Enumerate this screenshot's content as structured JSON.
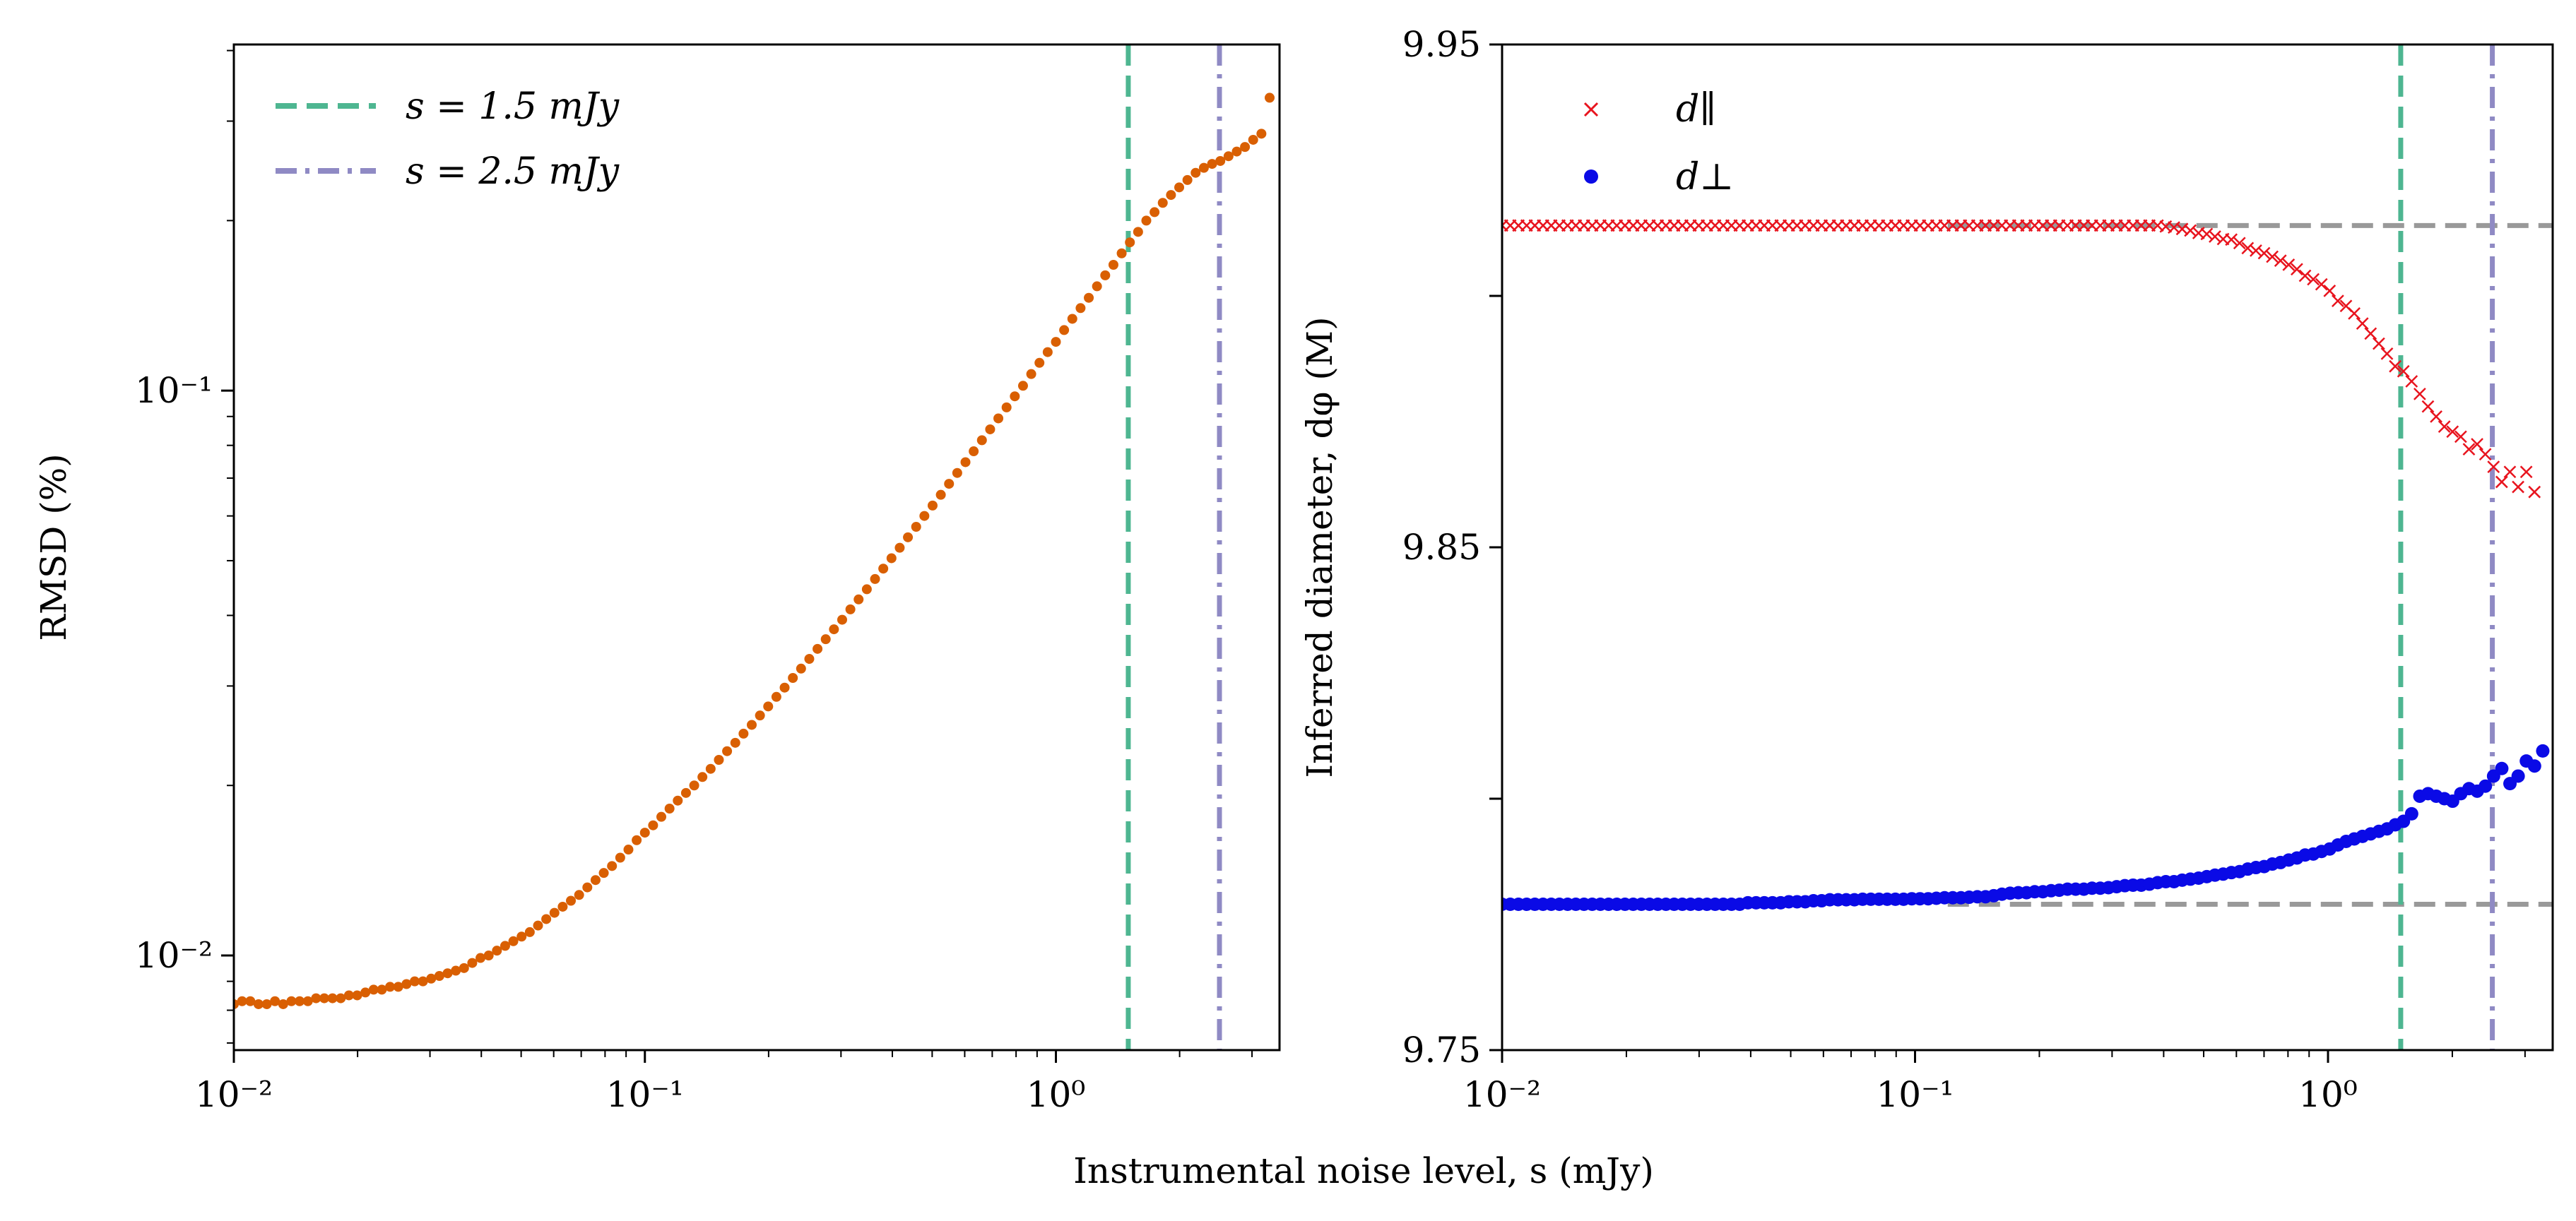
{
  "shared_xlabel": "Instrumental noise level, s (mJy)",
  "colors": {
    "rmsd": "#d95f02",
    "green": "#4eb691",
    "purple": "#8f8ac4",
    "red": "#e8141e",
    "blue": "#0a0ae6",
    "gray": "#999999"
  },
  "chart_data": [
    {
      "type": "scatter",
      "title": "",
      "xlabel": "Instrumental noise level, s (mJy)",
      "ylabel": "RMSD (%)",
      "xscale": "log",
      "yscale": "log",
      "xlim": [
        0.01,
        3.5
      ],
      "ylim": [
        0.0068,
        0.41
      ],
      "xticks": [
        {
          "value": 0.01,
          "label": "10⁻²"
        },
        {
          "value": 0.1,
          "label": "10⁻¹"
        },
        {
          "value": 1,
          "label": "10⁰"
        }
      ],
      "yticks": [
        {
          "value": 0.01,
          "label": "10⁻²"
        },
        {
          "value": 0.1,
          "label": "10⁻¹"
        }
      ],
      "legend": {
        "position": "top-left",
        "entries": [
          {
            "label": "s = 1.5 mJy",
            "style": "dashed",
            "color": "#4eb691"
          },
          {
            "label": "s = 2.5 mJy",
            "style": "dash-dot",
            "color": "#8f8ac4"
          }
        ]
      },
      "vlines": [
        {
          "x": 1.5,
          "style": "dashed",
          "color": "#4eb691"
        },
        {
          "x": 2.5,
          "style": "dash-dot",
          "color": "#8f8ac4"
        }
      ],
      "series": [
        {
          "name": "RMSD",
          "marker": "dot",
          "color": "#d95f02",
          "log10_x_range": [
            -2.0,
            0.52
          ],
          "values": [
            0.0082,
            0.0083,
            0.0083,
            0.0082,
            0.0082,
            0.0083,
            0.0082,
            0.0083,
            0.0083,
            0.0083,
            0.0084,
            0.0084,
            0.0084,
            0.0084,
            0.0085,
            0.0085,
            0.0086,
            0.0087,
            0.0087,
            0.0088,
            0.0088,
            0.0089,
            0.009,
            0.009,
            0.0091,
            0.0092,
            0.0093,
            0.0094,
            0.0095,
            0.0097,
            0.0099,
            0.01,
            0.0102,
            0.0104,
            0.0106,
            0.0108,
            0.011,
            0.0113,
            0.0116,
            0.0119,
            0.0122,
            0.0125,
            0.0128,
            0.0132,
            0.0136,
            0.014,
            0.0144,
            0.0149,
            0.0154,
            0.016,
            0.0165,
            0.017,
            0.0176,
            0.0182,
            0.0188,
            0.0194,
            0.02,
            0.0207,
            0.0214,
            0.0222,
            0.023,
            0.0238,
            0.0247,
            0.0256,
            0.0266,
            0.0276,
            0.0287,
            0.0298,
            0.031,
            0.0322,
            0.0335,
            0.0349,
            0.0363,
            0.0378,
            0.0393,
            0.041,
            0.0427,
            0.0445,
            0.0464,
            0.0484,
            0.0505,
            0.0527,
            0.055,
            0.0574,
            0.06,
            0.0626,
            0.0654,
            0.0684,
            0.0715,
            0.0747,
            0.0781,
            0.0817,
            0.0854,
            0.0893,
            0.0934,
            0.0977,
            0.102,
            0.107,
            0.112,
            0.117,
            0.122,
            0.128,
            0.134,
            0.14,
            0.146,
            0.153,
            0.16,
            0.167,
            0.175,
            0.183,
            0.191,
            0.2,
            0.207,
            0.215,
            0.222,
            0.229,
            0.236,
            0.243,
            0.248,
            0.252,
            0.255,
            0.26,
            0.265,
            0.27,
            0.278,
            0.285,
            0.33
          ]
        }
      ]
    },
    {
      "type": "scatter",
      "title": "",
      "xlabel": "Instrumental noise level, s (mJy)",
      "ylabel": "Inferred diameter, dφ (M)",
      "xscale": "log",
      "yscale": "linear",
      "xlim": [
        0.01,
        3.5
      ],
      "ylim": [
        9.75,
        9.95
      ],
      "xticks": [
        {
          "value": 0.01,
          "label": "10⁻²"
        },
        {
          "value": 0.1,
          "label": "10⁻¹"
        },
        {
          "value": 1,
          "label": "10⁰"
        }
      ],
      "yticks": [
        {
          "value": 9.75,
          "label": "9.75"
        },
        {
          "value": 9.85,
          "label": "9.85"
        },
        {
          "value": 9.95,
          "label": "9.95"
        }
      ],
      "yminorticks": [
        9.8,
        9.9
      ],
      "legend": {
        "position": "top-left",
        "entries": [
          {
            "label": "d∥",
            "marker": "x",
            "color": "#e8141e"
          },
          {
            "label": "d⊥",
            "marker": "dot",
            "color": "#0a0ae6"
          }
        ]
      },
      "vlines": [
        {
          "x": 1.5,
          "style": "dashed",
          "color": "#4eb691"
        },
        {
          "x": 2.5,
          "style": "dash-dot",
          "color": "#8f8ac4"
        }
      ],
      "hlines": [
        {
          "y": 9.914,
          "x_start": 0.12,
          "style": "dashed",
          "color": "#999999"
        },
        {
          "y": 9.779,
          "x_start": 0.12,
          "style": "dashed",
          "color": "#999999"
        }
      ],
      "series": [
        {
          "name": "d∥",
          "marker": "x",
          "color": "#e8141e",
          "log10_x_range": [
            -2.0,
            0.5
          ],
          "values": [
            9.914,
            9.914,
            9.914,
            9.914,
            9.914,
            9.914,
            9.914,
            9.914,
            9.914,
            9.914,
            9.914,
            9.914,
            9.914,
            9.914,
            9.914,
            9.914,
            9.914,
            9.914,
            9.914,
            9.914,
            9.914,
            9.914,
            9.914,
            9.914,
            9.914,
            9.914,
            9.914,
            9.914,
            9.914,
            9.914,
            9.914,
            9.914,
            9.914,
            9.914,
            9.914,
            9.914,
            9.914,
            9.914,
            9.914,
            9.914,
            9.914,
            9.914,
            9.914,
            9.914,
            9.914,
            9.914,
            9.914,
            9.914,
            9.914,
            9.914,
            9.914,
            9.914,
            9.914,
            9.914,
            9.914,
            9.914,
            9.914,
            9.914,
            9.914,
            9.914,
            9.914,
            9.914,
            9.914,
            9.914,
            9.914,
            9.914,
            9.914,
            9.914,
            9.914,
            9.914,
            9.914,
            9.914,
            9.914,
            9.914,
            9.914,
            9.914,
            9.914,
            9.914,
            9.914,
            9.914,
            9.914,
            9.9138,
            9.9136,
            9.9133,
            9.913,
            9.9125,
            9.9123,
            9.9118,
            9.9113,
            9.9112,
            9.9105,
            9.9095,
            9.909,
            9.9085,
            9.9078,
            9.907,
            9.9062,
            9.9053,
            9.904,
            9.9033,
            9.9023,
            9.901,
            9.899,
            9.898,
            9.8965,
            9.8945,
            9.8925,
            9.8905,
            9.8885,
            9.886,
            9.885,
            9.883,
            9.8805,
            9.878,
            9.876,
            9.874,
            9.873,
            9.872,
            9.8695,
            9.8705,
            9.8685,
            9.866,
            9.863,
            9.865,
            9.862,
            9.865,
            9.861
          ]
        },
        {
          "name": "d⊥",
          "marker": "dot",
          "color": "#0a0ae6",
          "log10_x_range": [
            -2.0,
            0.52
          ],
          "values": [
            9.779,
            9.779,
            9.779,
            9.779,
            9.779,
            9.779,
            9.779,
            9.779,
            9.779,
            9.779,
            9.779,
            9.779,
            9.779,
            9.779,
            9.779,
            9.779,
            9.779,
            9.779,
            9.779,
            9.779,
            9.779,
            9.779,
            9.779,
            9.779,
            9.779,
            9.779,
            9.779,
            9.779,
            9.779,
            9.779,
            9.7793,
            9.7793,
            9.7793,
            9.7793,
            9.7793,
            9.7795,
            9.7795,
            9.7795,
            9.7797,
            9.7797,
            9.7799,
            9.7799,
            9.7799,
            9.7799,
            9.78,
            9.78,
            9.78,
            9.78,
            9.78,
            9.78,
            9.7801,
            9.7801,
            9.7801,
            9.7802,
            9.7803,
            9.7803,
            9.7803,
            9.7804,
            9.7805,
            9.7805,
            9.7807,
            9.781,
            9.7812,
            9.7813,
            9.7813,
            9.7815,
            9.7815,
            9.7817,
            9.7818,
            9.782,
            9.782,
            9.782,
            9.7822,
            9.7822,
            9.7823,
            9.7825,
            9.7827,
            9.7828,
            9.7828,
            9.783,
            9.7833,
            9.7835,
            9.7835,
            9.7838,
            9.784,
            9.7842,
            9.7845,
            9.7848,
            9.785,
            9.7853,
            9.7855,
            9.786,
            9.7863,
            9.7865,
            9.787,
            9.7873,
            9.7878,
            9.7882,
            9.7888,
            9.789,
            9.7895,
            9.79,
            9.7908,
            9.7915,
            9.792,
            9.7925,
            9.793,
            9.7935,
            9.794,
            9.7948,
            9.7955,
            9.797,
            9.8005,
            9.801,
            9.8005,
            9.8,
            9.7995,
            9.801,
            9.802,
            9.8015,
            9.8025,
            9.8045,
            9.806,
            9.803,
            9.8045,
            9.8075,
            9.8065,
            9.8095
          ]
        }
      ]
    }
  ]
}
